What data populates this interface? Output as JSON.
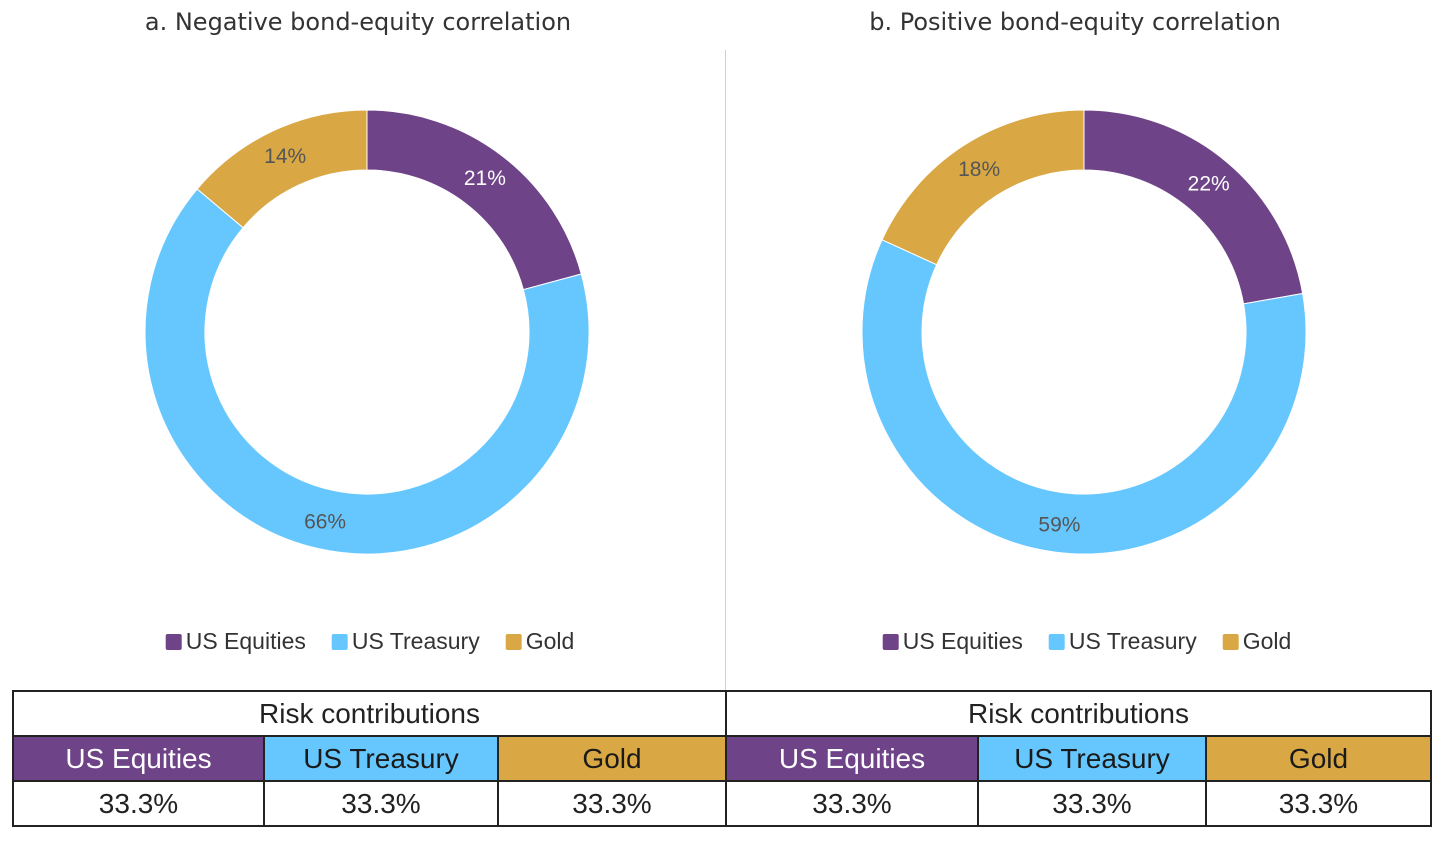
{
  "colors": {
    "us_equities": "#6e4387",
    "us_treasury": "#66c7ff",
    "gold": "#d9a845"
  },
  "chart_data": [
    {
      "type": "pie",
      "title": "a. Negative bond-equity correlation",
      "categories": [
        "US Equities",
        "US Treasury",
        "Gold"
      ],
      "values": [
        21,
        66,
        14
      ],
      "labels": [
        "21%",
        "66%",
        "14%"
      ],
      "legend": "bottom"
    },
    {
      "type": "pie",
      "title": "b. Positive bond-equity correlation",
      "categories": [
        "US Equities",
        "US Treasury",
        "Gold"
      ],
      "values": [
        22,
        59,
        18
      ],
      "labels": [
        "22%",
        "59%",
        "18%"
      ],
      "legend": "bottom"
    }
  ],
  "legend": {
    "items": [
      "US Equities",
      "US Treasury",
      "Gold"
    ]
  },
  "table": {
    "header": "Risk contributions",
    "columns": [
      "US Equities",
      "US Treasury",
      "Gold"
    ],
    "left_values": [
      "33.3%",
      "33.3%",
      "33.3%"
    ],
    "right_values": [
      "33.3%",
      "33.3%",
      "33.3%"
    ]
  }
}
